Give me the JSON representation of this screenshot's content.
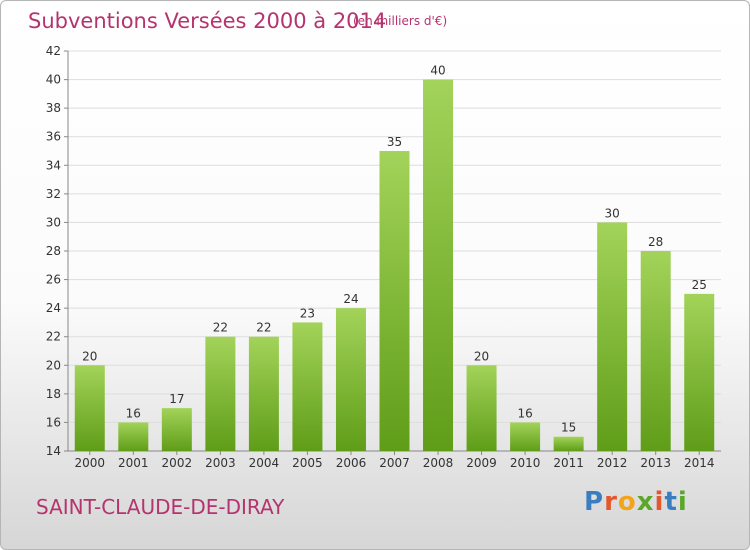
{
  "header": {
    "title": "Subventions Versées 2000 à 2014",
    "unit": "(en milliers d'€)"
  },
  "footer": {
    "place": "SAINT-CLAUDE-DE-DIRAY",
    "logo": "Proxiti",
    "logo_colors": [
      "#3a7ebf",
      "#e4572e",
      "#f2a51a",
      "#5aa82a",
      "#e4572e",
      "#3a7ebf",
      "#5aa82a"
    ]
  },
  "chart_data": {
    "type": "bar",
    "categories": [
      "2000",
      "2001",
      "2002",
      "2003",
      "2004",
      "2005",
      "2006",
      "2007",
      "2008",
      "2009",
      "2010",
      "2011",
      "2012",
      "2013",
      "2014"
    ],
    "values": [
      20,
      16,
      17,
      22,
      22,
      23,
      24,
      35,
      40,
      20,
      16,
      15,
      30,
      28,
      25
    ],
    "ylim": [
      14,
      42
    ],
    "yticks": [
      14,
      16,
      18,
      20,
      22,
      24,
      26,
      28,
      30,
      32,
      34,
      36,
      38,
      40,
      42
    ],
    "grid": true,
    "bar_color_top": "#a3d35a",
    "bar_color_bottom": "#5f9d18"
  }
}
